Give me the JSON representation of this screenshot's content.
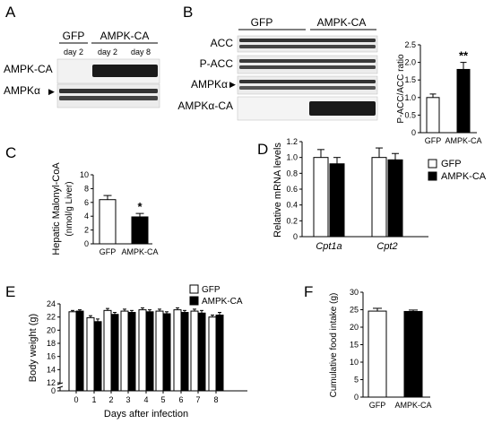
{
  "panels": {
    "A": {
      "label": "A",
      "groups": [
        "GFP",
        "AMPK-CA"
      ],
      "lanes": [
        "day 2",
        "day 2",
        "day 8"
      ],
      "blots": [
        "AMPK-CA",
        "AMPKα"
      ],
      "arrow": "▶"
    },
    "B": {
      "label": "B",
      "groups": [
        "GFP",
        "AMPK-CA"
      ],
      "blots": [
        "ACC",
        "P-ACC",
        "AMPKα",
        "AMPKα-CA"
      ],
      "arrow": "▶"
    },
    "C": {
      "label": "C"
    },
    "D": {
      "label": "D"
    },
    "E": {
      "label": "E"
    },
    "F": {
      "label": "F"
    }
  },
  "chart_data": [
    {
      "id": "B",
      "type": "bar",
      "title": "",
      "ylabel": "P-ACC/ACC ratio",
      "categories": [
        "GFP",
        "AMPK-CA"
      ],
      "values": [
        1.0,
        1.8
      ],
      "errors": [
        0.1,
        0.2
      ],
      "ylim": [
        0,
        2.5
      ],
      "yticks": [
        "0",
        "0.5",
        "1.0",
        "1.5",
        "2.0",
        "2.5"
      ],
      "annotations": [
        {
          "category": "AMPK-CA",
          "text": "**"
        }
      ],
      "colors": [
        "#ffffff",
        "#000000"
      ]
    },
    {
      "id": "C",
      "type": "bar",
      "ylabel": "Hepatic Malonyl-CoA",
      "ylabel2": "(nmol/g Liver)",
      "categories": [
        "GFP",
        "AMPK-CA"
      ],
      "values": [
        6.4,
        3.9
      ],
      "errors": [
        0.6,
        0.5
      ],
      "ylim": [
        0,
        10
      ],
      "yticks": [
        "0",
        "2",
        "4",
        "6",
        "8",
        "10"
      ],
      "annotations": [
        {
          "category": "AMPK-CA",
          "text": "*"
        }
      ],
      "colors": [
        "#ffffff",
        "#000000"
      ]
    },
    {
      "id": "D",
      "type": "bar",
      "ylabel": "Relative mRNA levels",
      "categories": [
        "Cpt1a",
        "Cpt2"
      ],
      "series": [
        {
          "name": "GFP",
          "values": [
            1.0,
            1.0
          ],
          "errors": [
            0.1,
            0.12
          ],
          "color": "#ffffff"
        },
        {
          "name": "AMPK-CA",
          "values": [
            0.92,
            0.97
          ],
          "errors": [
            0.08,
            0.08
          ],
          "color": "#000000"
        }
      ],
      "ylim": [
        0,
        1.2
      ],
      "yticks": [
        "0",
        "0.2",
        "0.4",
        "0.6",
        "0.8",
        "1.0",
        "1.2"
      ],
      "legend": "top-right"
    },
    {
      "id": "E",
      "type": "bar",
      "ylabel": "Body weight (g)",
      "xlabel": "Days after infection",
      "categories": [
        "0",
        "1",
        "2",
        "3",
        "4",
        "5",
        "6",
        "7",
        "8"
      ],
      "series": [
        {
          "name": "GFP",
          "values": [
            22.8,
            21.9,
            23.0,
            22.9,
            23.1,
            22.9,
            23.1,
            22.9,
            22.0
          ],
          "errors": [
            0.2,
            0.3,
            0.3,
            0.3,
            0.3,
            0.3,
            0.3,
            0.3,
            0.3
          ],
          "color": "#ffffff"
        },
        {
          "name": "AMPK-CA",
          "values": [
            22.9,
            21.3,
            22.4,
            22.7,
            22.8,
            22.5,
            22.7,
            22.6,
            22.3
          ],
          "errors": [
            0.2,
            0.4,
            0.3,
            0.3,
            0.3,
            0.3,
            0.3,
            0.4,
            0.4
          ],
          "color": "#000000"
        }
      ],
      "ylim": [
        0,
        24
      ],
      "yticks": [
        "0",
        "12",
        "14",
        "16",
        "18",
        "20",
        "22",
        "24"
      ],
      "axis_break": true,
      "legend": "top-right"
    },
    {
      "id": "F",
      "type": "bar",
      "ylabel": "Cumulative food intake (g)",
      "categories": [
        "GFP",
        "AMPK-CA"
      ],
      "values": [
        24.6,
        24.5
      ],
      "errors": [
        0.8,
        0.4
      ],
      "ylim": [
        0,
        30
      ],
      "yticks": [
        "0",
        "5",
        "10",
        "15",
        "20",
        "25",
        "30"
      ],
      "colors": [
        "#ffffff",
        "#000000"
      ]
    }
  ]
}
